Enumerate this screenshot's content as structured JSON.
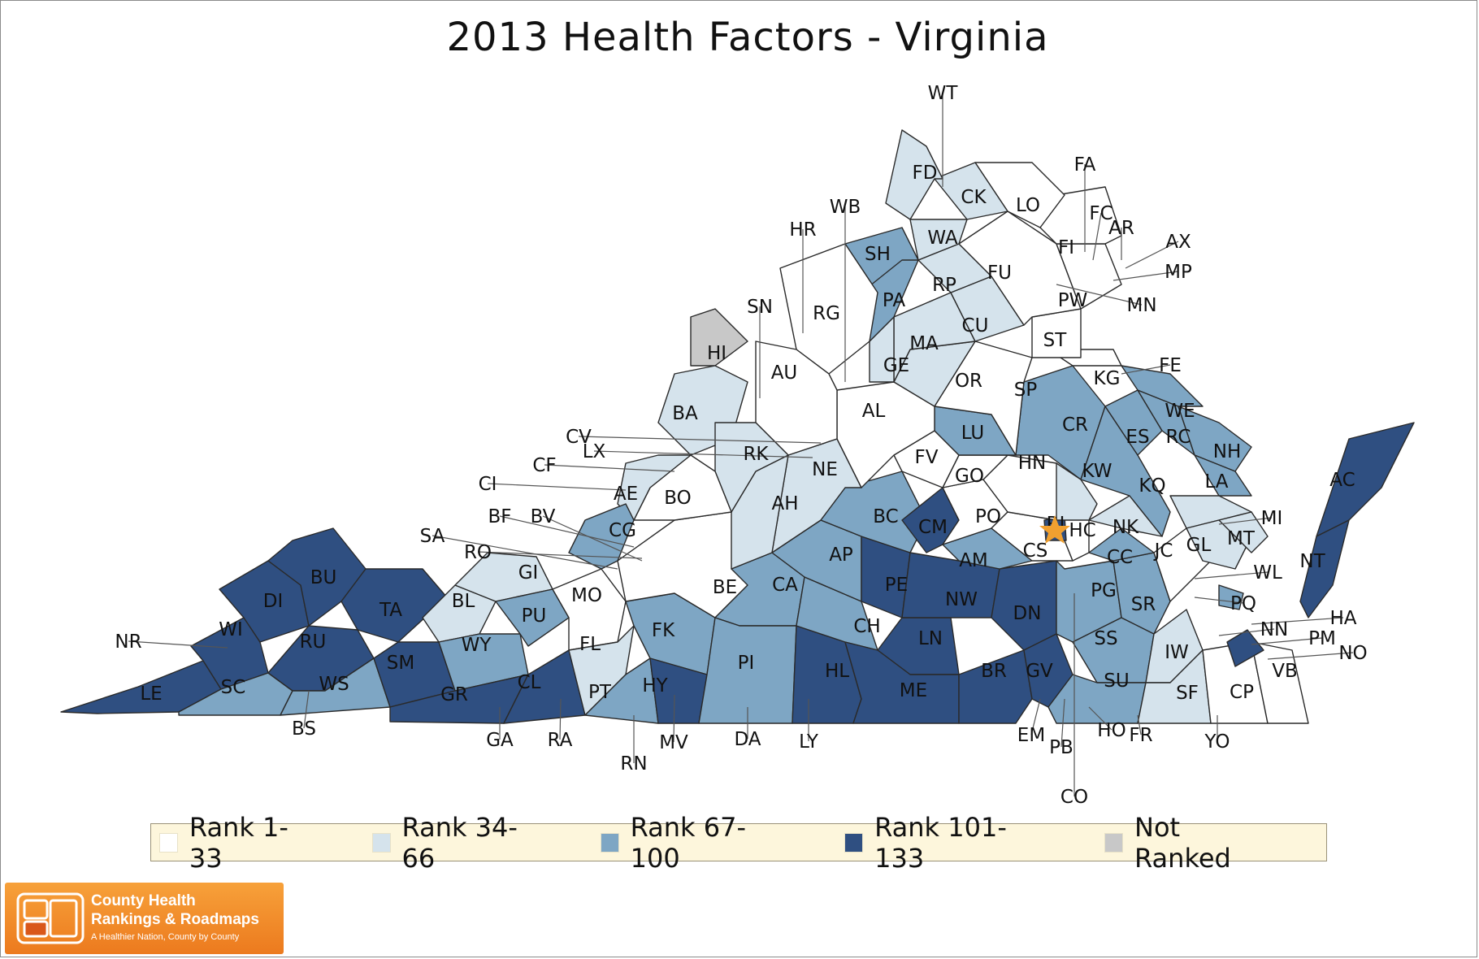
{
  "title": "2013 Health Factors - Virginia",
  "colors": {
    "rank1": "#ffffff",
    "rank2": "#d5e3ec",
    "rank3": "#7ea6c4",
    "rank4": "#2f4f81",
    "notranked": "#c8c8c8",
    "star": "#f0a030"
  },
  "legend": [
    {
      "label": "Rank 1-33",
      "color": "#ffffff"
    },
    {
      "label": "Rank 34-66",
      "color": "#d5e3ec"
    },
    {
      "label": "Rank 67-100",
      "color": "#7ea6c4"
    },
    {
      "label": "Rank 101-133",
      "color": "#2f4f81"
    },
    {
      "label": "Not Ranked",
      "color": "#c8c8c8"
    }
  ],
  "logo": {
    "line1": "County Health",
    "line2": "Rankings & Roadmaps",
    "line3": "A Healthier Nation, County by County"
  },
  "labels": [
    "WT",
    "FA",
    "FD",
    "CK",
    "LO",
    "FC",
    "AR",
    "AX",
    "MP",
    "MN",
    "FI",
    "WB",
    "HR",
    "SH",
    "WA",
    "FU",
    "PW",
    "SN",
    "RG",
    "PA",
    "RP",
    "CU",
    "ST",
    "HI",
    "AU",
    "MA",
    "GE",
    "OR",
    "SP",
    "FE",
    "KG",
    "AL",
    "BA",
    "LU",
    "CR",
    "WE",
    "RC",
    "NH",
    "ES",
    "CV",
    "LX",
    "RK",
    "FV",
    "HN",
    "KW",
    "KQ",
    "LA",
    "CF",
    "NE",
    "GO",
    "CI",
    "AE",
    "BO",
    "AH",
    "BC",
    "CM",
    "PO",
    "RI",
    "HC",
    "NK",
    "MI",
    "BF",
    "BV",
    "CG",
    "CS",
    "JC",
    "GL",
    "MT",
    "SA",
    "RO",
    "GI",
    "AP",
    "AM",
    "CC",
    "AC",
    "WL",
    "MO",
    "BE",
    "CA",
    "PE",
    "NW",
    "DN",
    "PG",
    "SR",
    "NT",
    "PQ",
    "BU",
    "BL",
    "PU",
    "HA",
    "DI",
    "TA",
    "NN",
    "PM",
    "NO",
    "NR",
    "WI",
    "RU",
    "FK",
    "CH",
    "SS",
    "IW",
    "LN",
    "FL",
    "WY",
    "PI",
    "SM",
    "HL",
    "BR",
    "GV",
    "SU",
    "VB",
    "LE",
    "SC",
    "WS",
    "GR",
    "CL",
    "PT",
    "HY",
    "ME",
    "SF",
    "CP",
    "BS",
    "EM",
    "HO",
    "FR",
    "GA",
    "RA",
    "MV",
    "DA",
    "LY",
    "PB",
    "YO",
    "RN",
    "CO"
  ]
}
